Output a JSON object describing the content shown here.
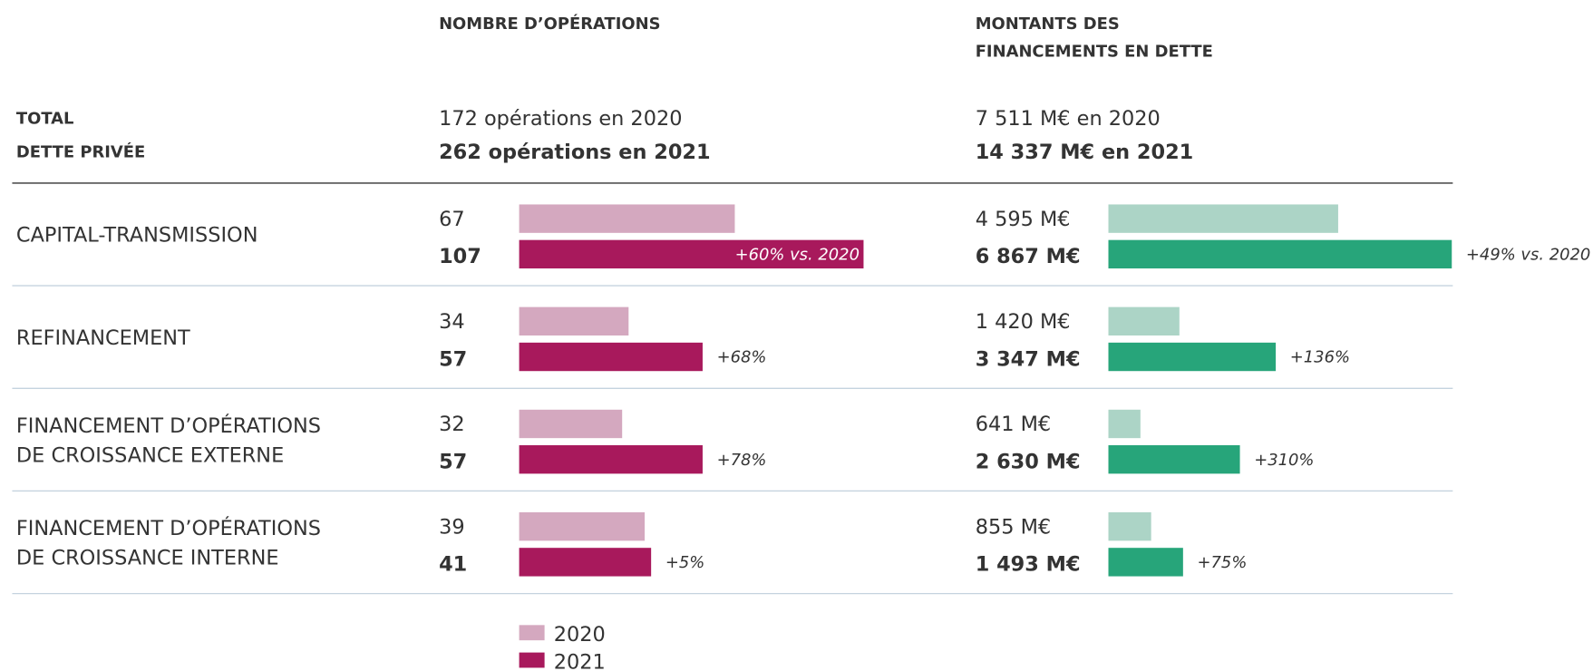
{
  "row_heading": [
    "TOTAL",
    "DETTE PRIVÉE"
  ],
  "chart_data": [
    {
      "type": "bar",
      "orientation": "horizontal",
      "title": "NOMBRE D’OPÉRATIONS",
      "totals": [
        "172 opérations en 2020",
        "262 opérations en 2021"
      ],
      "categories": [
        [
          "CAPITAL-TRANSMISSION"
        ],
        [
          "REFINANCEMENT"
        ],
        [
          "FINANCEMENT D’OPÉRATIONS",
          "DE CROISSANCE EXTERNE"
        ],
        [
          "FINANCEMENT D’OPÉRATIONS",
          "DE CROISSANCE INTERNE"
        ]
      ],
      "xlim": [
        0,
        107
      ],
      "series": [
        {
          "name": "2020",
          "color": "#d4a8bf",
          "values": [
            67,
            34,
            32,
            39
          ]
        },
        {
          "name": "2021",
          "color": "#a8195c",
          "values": [
            107,
            57,
            57,
            41
          ]
        }
      ],
      "annotations": [
        "+60% vs. 2020",
        "+68%",
        "+78%",
        "+5%"
      ],
      "legend": true
    },
    {
      "type": "bar",
      "orientation": "horizontal",
      "title": [
        "MONTANTS DES",
        "FINANCEMENTS EN DETTE"
      ],
      "totals": [
        "7 511 M€ en 2020",
        "14 337 M€ en 2021"
      ],
      "xlim": [
        0,
        6867
      ],
      "series": [
        {
          "color": "#acd4c6",
          "values": [
            4595,
            1420,
            641,
            855
          ],
          "value_labels": [
            "4 595 M€",
            "1 420 M€",
            "641 M€",
            "855 M€"
          ]
        },
        {
          "color": "#27a57a",
          "values": [
            6867,
            3347,
            2630,
            1493
          ],
          "value_labels": [
            "6 867 M€",
            "3 347 M€",
            "2 630 M€",
            "1 493 M€"
          ]
        }
      ],
      "annotations": [
        "+49% vs. 2020",
        "+136%",
        "+310%",
        "+75%"
      ]
    }
  ]
}
